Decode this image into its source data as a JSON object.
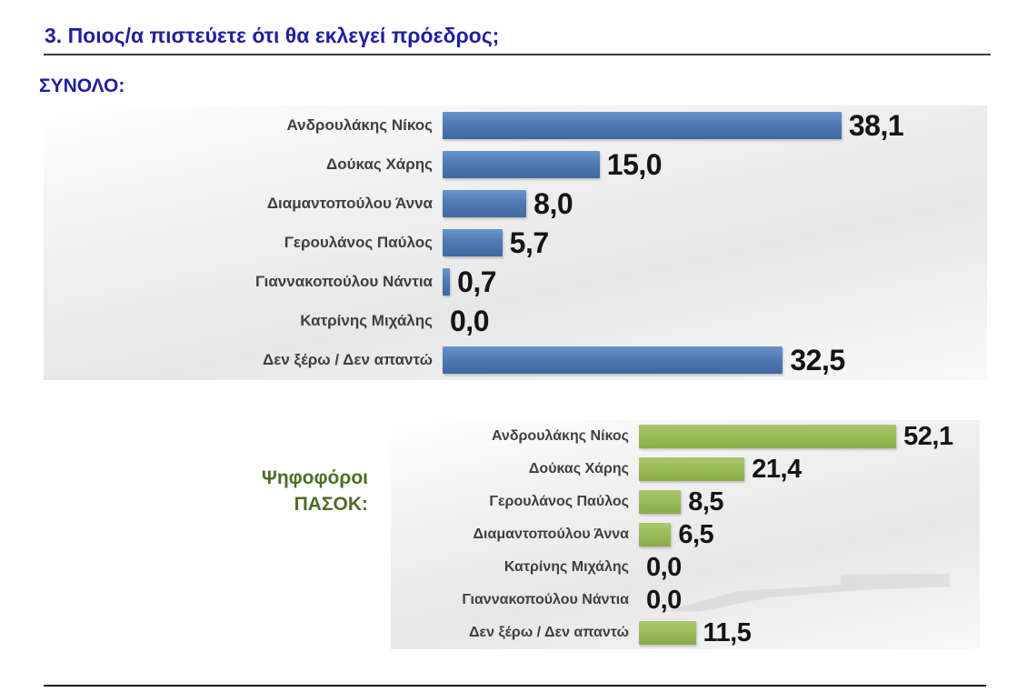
{
  "page": {
    "title": "3. Ποιος/α πιστεύετε ότι θα εκλεγεί πρόεδρος;",
    "section_total": "ΣΥΝΟΛΟ:",
    "section_pasok_lines": [
      "Ψηφοφόροι",
      "ΠΑΣΟΚ:"
    ]
  },
  "colors": {
    "title_navy": "#1f1f9e",
    "pasok_text_green": "#4e6d28",
    "bar_blue": "#4d7ab4",
    "bar_green": "#9bbb59",
    "category_label_gray": "#3f3f3f",
    "value_label_black": "#141414"
  },
  "chart_data": [
    {
      "type": "bar",
      "orientation": "horizontal",
      "title": "ΣΥΝΟΛΟ:",
      "bar_color": "#4d7ab4",
      "categories": [
        "Ανδρουλάκης Νίκος",
        "Δούκας Χάρης",
        "Διαμαντοπούλου Άννα",
        "Γερουλάνος Παύλος",
        "Γιαννακοπούλου Νάντια",
        "Κατρίνης Μιχάλης",
        "Δεν ξέρω / Δεν απαντώ"
      ],
      "values": [
        38.1,
        15.0,
        8.0,
        5.7,
        0.7,
        0.0,
        32.5
      ],
      "values_display": [
        "38,1",
        "15,0",
        "8,0",
        "5,7",
        "0,7",
        "0,0",
        "32,5"
      ],
      "xlim": [
        0,
        52
      ],
      "data_labels": true,
      "grid": false,
      "legend": false,
      "axis_ticks_visible": false
    },
    {
      "type": "bar",
      "orientation": "horizontal",
      "title": "Ψηφοφόροι ΠΑΣΟΚ:",
      "bar_color": "#9bbb59",
      "categories": [
        "Ανδρουλάκης Νίκος",
        "Δούκας Χάρης",
        "Γερουλάνος Παύλος",
        "Διαμαντοπούλου Άννα",
        "Κατρίνης Μιχάλης",
        "Γιαννακοπούλου Νάντια",
        "Δεν ξέρω / Δεν απαντώ"
      ],
      "values": [
        52.1,
        21.4,
        8.5,
        6.5,
        0.0,
        0.0,
        11.5
      ],
      "values_display": [
        "52,1",
        "21,4",
        "8,5",
        "6,5",
        "0,0",
        "0,0",
        "11,5"
      ],
      "xlim": [
        0,
        69
      ],
      "data_labels": true,
      "grid": false,
      "legend": false,
      "axis_ticks_visible": false
    }
  ]
}
